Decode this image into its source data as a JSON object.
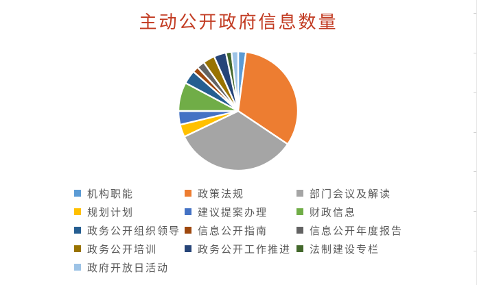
{
  "page": {
    "background": "#ffffff"
  },
  "chart_data": {
    "type": "pie",
    "title": "主动公开政府信息数量",
    "title_color": "#c23b22",
    "legend_position": "bottom",
    "legend_columns": 3,
    "legend_text_color": "#595959",
    "slice_border_color": "#ffffff",
    "items": [
      {
        "label": "机构职能",
        "value": 2.1,
        "color": "#5B9BD5"
      },
      {
        "label": "政策法规",
        "value": 32.3,
        "color": "#ED7D31"
      },
      {
        "label": "部门会议及解读",
        "value": 33.5,
        "color": "#A5A5A5"
      },
      {
        "label": "规划计划",
        "value": 3.4,
        "color": "#FFC000"
      },
      {
        "label": "建议提案办理",
        "value": 3.7,
        "color": "#4472C4"
      },
      {
        "label": "财政信息",
        "value": 7.8,
        "color": "#70AD47"
      },
      {
        "label": "政务公开组织领导",
        "value": 3.7,
        "color": "#255E91"
      },
      {
        "label": "信息公开指南",
        "value": 1.6,
        "color": "#9E480E"
      },
      {
        "label": "信息公开年度报告",
        "value": 2.1,
        "color": "#636363"
      },
      {
        "label": "政务公开培训",
        "value": 3.2,
        "color": "#997300"
      },
      {
        "label": "政务公开工作推进",
        "value": 3.3,
        "color": "#264478"
      },
      {
        "label": "法制建设专栏",
        "value": 1.5,
        "color": "#43682B"
      },
      {
        "label": "政府开放日活动",
        "value": 1.8,
        "color": "#9DC3E6"
      }
    ]
  }
}
